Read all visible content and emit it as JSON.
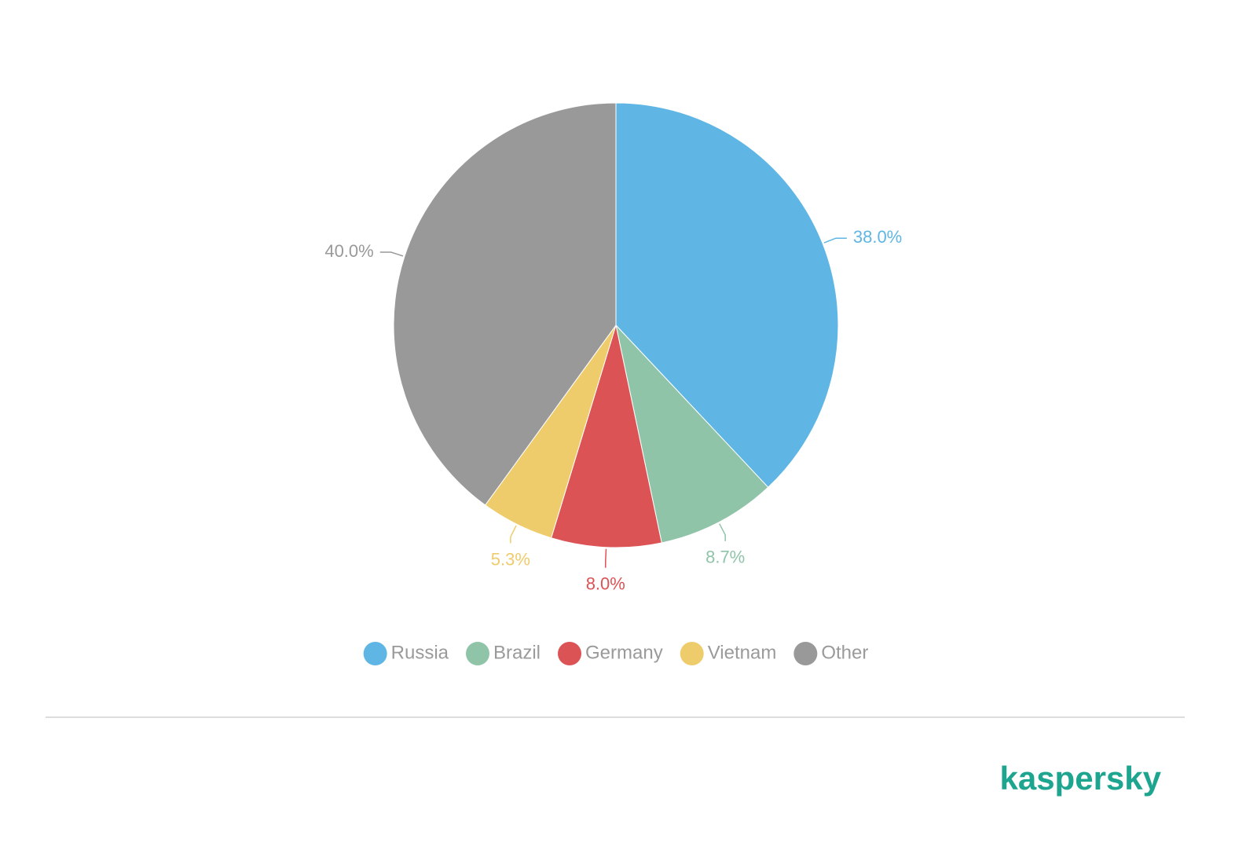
{
  "chart_data": {
    "type": "pie",
    "categories": [
      "Russia",
      "Brazil",
      "Germany",
      "Vietnam",
      "Other"
    ],
    "values": [
      38.0,
      8.7,
      8.0,
      5.3,
      40.0
    ],
    "value_labels": [
      "38.0%",
      "8.7%",
      "8.0%",
      "5.3%",
      "40.0%"
    ],
    "colors": [
      "#5fb6e5",
      "#90c4a8",
      "#dc5355",
      "#efcc6b",
      "#999999"
    ],
    "legend": "bottom"
  },
  "footer": {
    "logo": "kaspersky"
  }
}
